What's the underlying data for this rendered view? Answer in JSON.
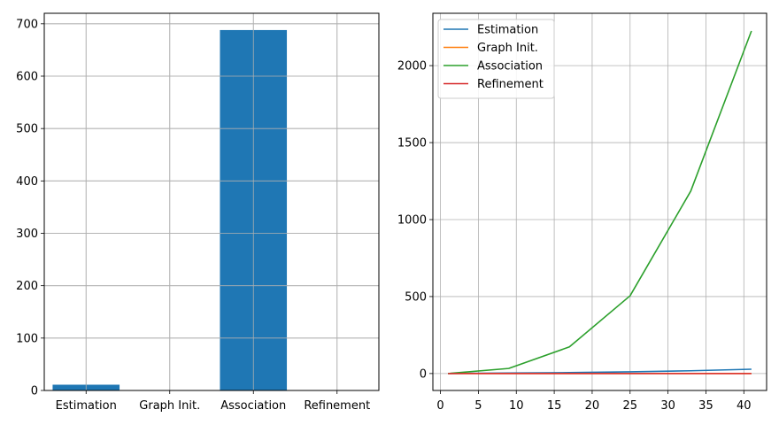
{
  "chart_data": [
    {
      "type": "bar",
      "title": "",
      "xlabel": "",
      "ylabel": "",
      "categories": [
        "Estimation",
        "Graph Init.",
        "Association",
        "Refinement"
      ],
      "values": [
        11,
        0.3,
        688,
        0.2
      ],
      "ylim": [
        0,
        720
      ],
      "yticks": [
        0,
        100,
        200,
        300,
        400,
        500,
        600,
        700
      ],
      "grid": true,
      "colors": {
        "bar": "#1f77b4"
      }
    },
    {
      "type": "line",
      "title": "",
      "xlabel": "",
      "ylabel": "",
      "x": [
        1,
        9,
        17,
        25,
        33,
        41
      ],
      "xlim": [
        -1,
        43
      ],
      "ylim": [
        -110,
        2340
      ],
      "xticks": [
        0,
        5,
        10,
        15,
        20,
        25,
        30,
        35,
        40
      ],
      "yticks": [
        0,
        500,
        1000,
        1500,
        2000
      ],
      "grid": true,
      "legend": "top-left",
      "series": [
        {
          "name": "Estimation",
          "color": "#1f77b4",
          "values": [
            0.5,
            3,
            6,
            11,
            18,
            28
          ]
        },
        {
          "name": "Graph Init.",
          "color": "#ff7f0e",
          "values": [
            0,
            0,
            0,
            0,
            0,
            0
          ]
        },
        {
          "name": "Association",
          "color": "#2ca02c",
          "values": [
            0,
            33,
            173,
            505,
            1185,
            2225
          ]
        },
        {
          "name": "Refinement",
          "color": "#d62728",
          "values": [
            0,
            0,
            0,
            0,
            0,
            0
          ]
        }
      ]
    }
  ]
}
